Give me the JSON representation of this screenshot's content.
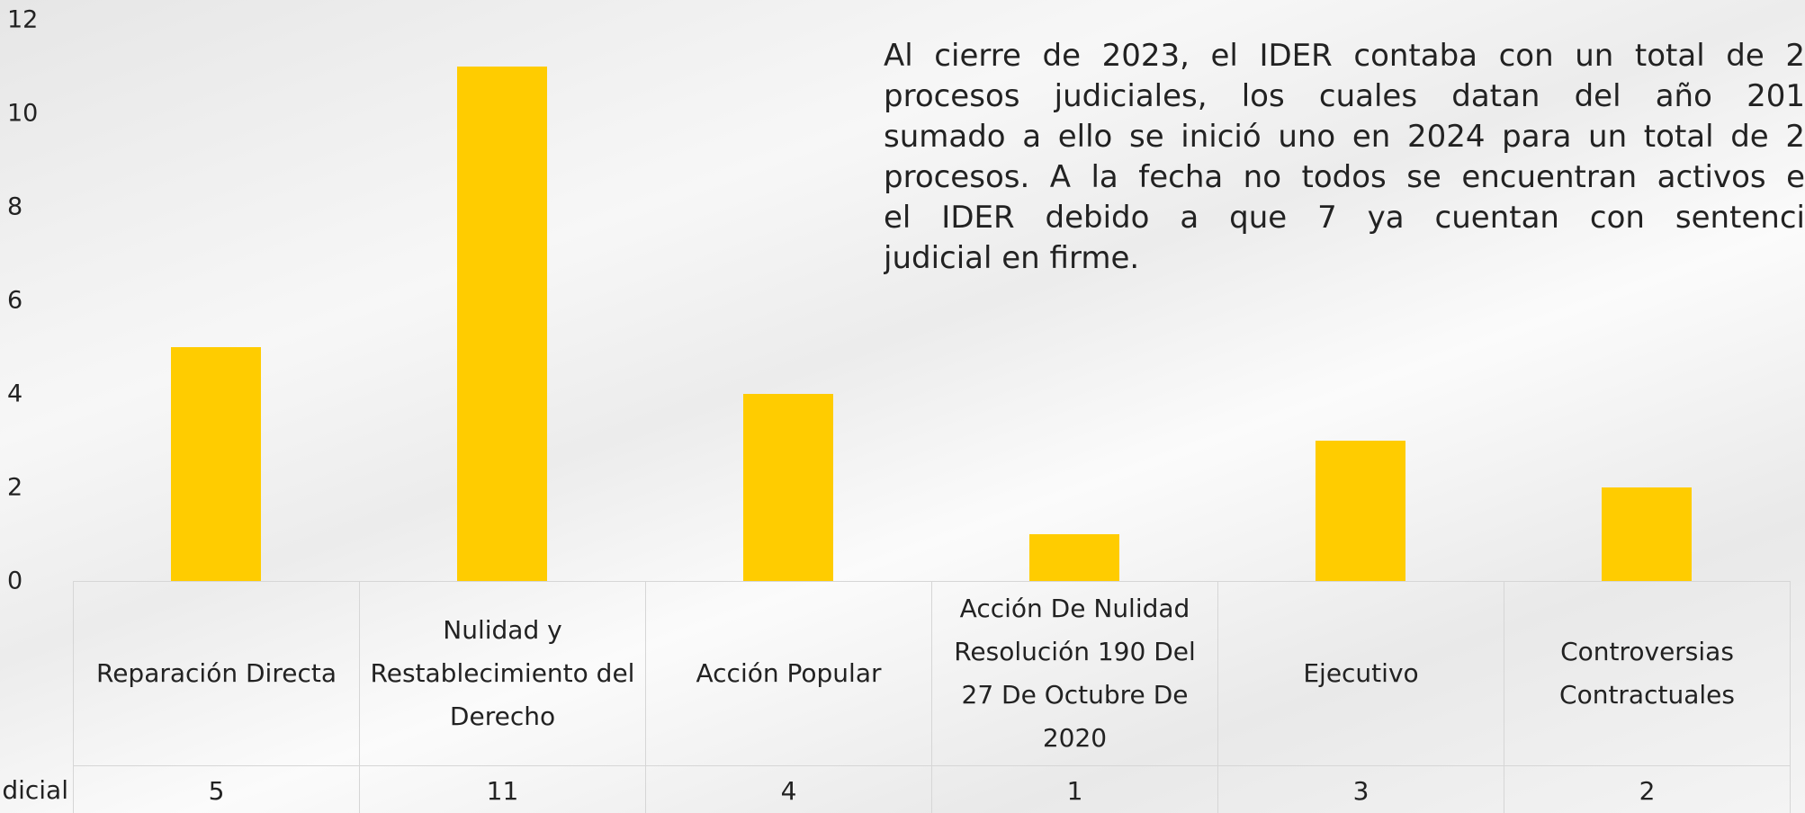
{
  "chart_data": {
    "type": "bar",
    "categories": [
      "Reparación Directa",
      "Nulidad y Restablecimiento del Derecho",
      "Acción Popular",
      "Acción De Nulidad Resolución 190 Del 27 De Octubre De 2020",
      "Ejecutivo",
      "Controversias Contractuales"
    ],
    "series": [
      {
        "name": "dicial",
        "color": "#ffcc00",
        "values": [
          5,
          11,
          4,
          1,
          3,
          2
        ]
      }
    ],
    "ylim": [
      0,
      12
    ],
    "yticks": [
      0,
      2,
      4,
      6,
      8,
      10,
      12
    ],
    "annotation": [
      "Al cierre de 2023, el IDER contaba con un total de 2",
      "procesos judiciales, los cuales datan del año 201",
      "sumado a ello se inició uno en 2024 para un total de 2",
      "procesos. A la fecha no todos se encuentran activos e",
      "el IDER debido a que 7 ya cuentan con sentenci",
      "judicial en firme."
    ]
  }
}
